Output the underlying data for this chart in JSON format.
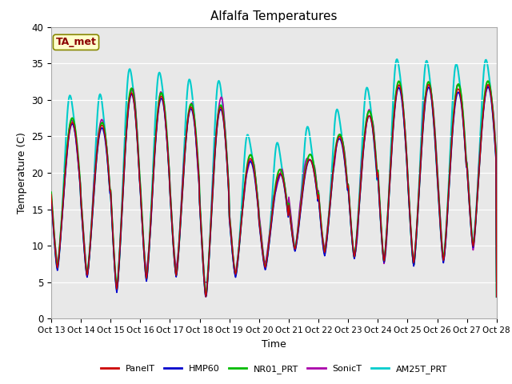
{
  "title": "Alfalfa Temperatures",
  "xlabel": "Time",
  "ylabel": "Temperature (C)",
  "ylim": [
    0,
    40
  ],
  "xlim": [
    0,
    360
  ],
  "plot_bg": "#e8e8e8",
  "annotation_text": "TA_met",
  "annotation_color": "#8B0000",
  "annotation_bg": "#ffffcc",
  "annotation_edge": "#888800",
  "xtick_labels": [
    "Oct 13",
    "Oct 14",
    "Oct 15",
    "Oct 16",
    "Oct 17",
    "Oct 18",
    "Oct 19",
    "Oct 20",
    "Oct 21",
    "Oct 22",
    "Oct 23",
    "Oct 24",
    "Oct 25",
    "Oct 26",
    "Oct 27",
    "Oct 28"
  ],
  "xtick_positions": [
    0,
    24,
    48,
    72,
    96,
    120,
    144,
    168,
    192,
    216,
    240,
    264,
    288,
    312,
    336,
    360
  ],
  "ytick_labels": [
    "0",
    "5",
    "10",
    "15",
    "20",
    "25",
    "30",
    "35",
    "40"
  ],
  "ytick_positions": [
    0,
    5,
    10,
    15,
    20,
    25,
    30,
    35,
    40
  ],
  "legend_labels": [
    "PanelT",
    "HMP60",
    "NR01_PRT",
    "SonicT",
    "AM25T_PRT"
  ],
  "legend_colors": [
    "#cc0000",
    "#0000cc",
    "#00bb00",
    "#aa00aa",
    "#00cccc"
  ],
  "series_lw": [
    1.0,
    1.2,
    1.5,
    1.2,
    1.5
  ]
}
